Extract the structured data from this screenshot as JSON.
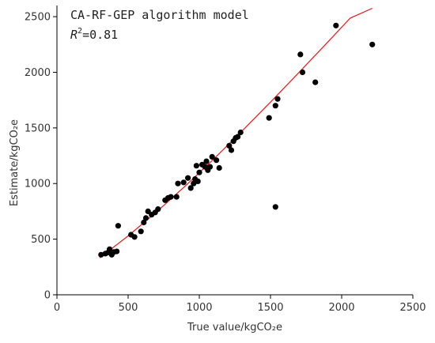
{
  "chart_data": {
    "type": "scatter",
    "xlabel": "True value/kgCO₂e",
    "ylabel": "Estimate/kgCO₂e",
    "xlim": [
      0,
      2500
    ],
    "ylim": [
      0,
      2600
    ],
    "xticks": [
      0,
      500,
      1000,
      1500,
      2000,
      2500
    ],
    "yticks": [
      0,
      500,
      1000,
      1500,
      2000,
      2500
    ],
    "grid": false,
    "annotations": {
      "model": "CA-RF-GEP algorithm model",
      "r2_symbol": "R",
      "r2_exp": "2",
      "r2_value": "=0.81"
    },
    "series": [
      {
        "type": "scatter",
        "color": "#000000",
        "points": [
          [
            310,
            360
          ],
          [
            340,
            370
          ],
          [
            360,
            380
          ],
          [
            370,
            410
          ],
          [
            385,
            360
          ],
          [
            400,
            385
          ],
          [
            420,
            390
          ],
          [
            430,
            620
          ],
          [
            520,
            540
          ],
          [
            545,
            520
          ],
          [
            590,
            570
          ],
          [
            610,
            650
          ],
          [
            625,
            690
          ],
          [
            640,
            750
          ],
          [
            665,
            720
          ],
          [
            690,
            740
          ],
          [
            710,
            770
          ],
          [
            760,
            850
          ],
          [
            780,
            870
          ],
          [
            800,
            880
          ],
          [
            840,
            880
          ],
          [
            850,
            1000
          ],
          [
            890,
            1010
          ],
          [
            920,
            1050
          ],
          [
            940,
            960
          ],
          [
            960,
            1000
          ],
          [
            970,
            1040
          ],
          [
            980,
            1160
          ],
          [
            990,
            1020
          ],
          [
            1000,
            1100
          ],
          [
            1020,
            1170
          ],
          [
            1040,
            1150
          ],
          [
            1050,
            1200
          ],
          [
            1060,
            1120
          ],
          [
            1075,
            1150
          ],
          [
            1090,
            1240
          ],
          [
            1120,
            1210
          ],
          [
            1140,
            1140
          ],
          [
            1210,
            1340
          ],
          [
            1225,
            1300
          ],
          [
            1240,
            1380
          ],
          [
            1255,
            1410
          ],
          [
            1270,
            1420
          ],
          [
            1290,
            1460
          ],
          [
            1490,
            1590
          ],
          [
            1535,
            790
          ],
          [
            1535,
            1700
          ],
          [
            1550,
            1760
          ],
          [
            1710,
            2160
          ],
          [
            1725,
            2000
          ],
          [
            1815,
            1910
          ],
          [
            1960,
            2420
          ],
          [
            2215,
            2250
          ]
        ]
      },
      {
        "type": "line",
        "color": "#e8191c",
        "points": [
          [
            300,
            332
          ],
          [
            500,
            529
          ],
          [
            700,
            745
          ],
          [
            900,
            976
          ],
          [
            1100,
            1219
          ],
          [
            1300,
            1472
          ],
          [
            1500,
            1732
          ],
          [
            1700,
            1998
          ],
          [
            1900,
            2268
          ],
          [
            2060,
            2487
          ],
          [
            2215,
            2575
          ]
        ]
      }
    ]
  }
}
